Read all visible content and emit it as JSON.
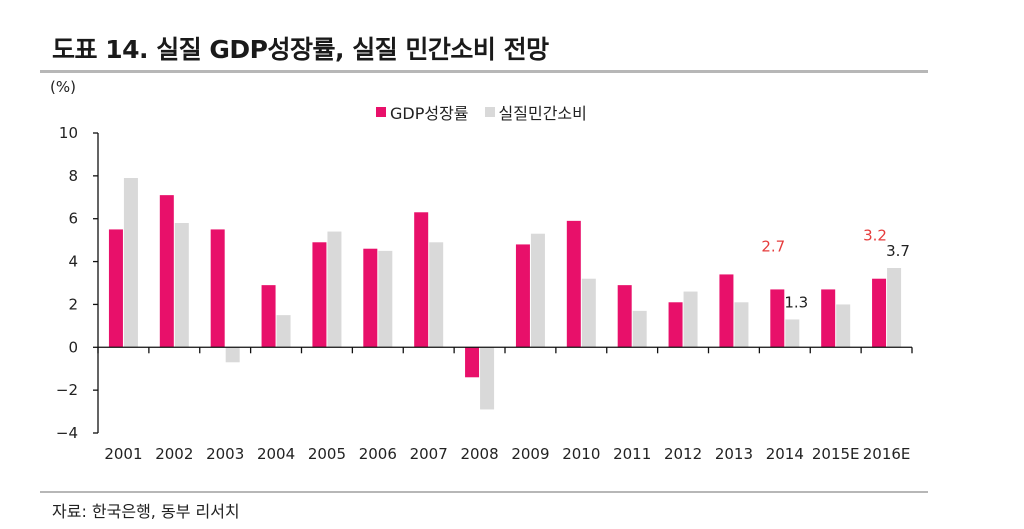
{
  "header": {
    "title": "도표 14. 실질 GDP성장률, 실질 민간소비 전망",
    "source": "자료: 한국은행, 동부 리서치",
    "unit": "(%)"
  },
  "colors": {
    "gdp": "#e8106a",
    "consumption": "#d9d9d9",
    "axis": "#111111",
    "annotation_red": "#e63c3c"
  },
  "chart_data": {
    "type": "bar",
    "categories": [
      "2001",
      "2002",
      "2003",
      "2004",
      "2005",
      "2006",
      "2007",
      "2008",
      "2009",
      "2010",
      "2011",
      "2012",
      "2013",
      "2014",
      "2015E",
      "2016E"
    ],
    "series": [
      {
        "name": "GDP성장률",
        "values": [
          5.5,
          7.1,
          5.5,
          2.9,
          4.9,
          4.6,
          6.3,
          -1.4,
          4.8,
          5.9,
          2.9,
          2.1,
          3.4,
          2.7,
          2.7,
          3.2
        ]
      },
      {
        "name": "실질민간소비",
        "values": [
          7.9,
          5.8,
          -0.7,
          1.5,
          5.4,
          4.5,
          4.9,
          -2.9,
          5.3,
          3.2,
          1.7,
          2.6,
          2.1,
          1.3,
          2.0,
          3.7
        ]
      }
    ],
    "ylim": [
      -4,
      10
    ],
    "yticks": [
      "−4",
      "−2",
      "0",
      "2",
      "4",
      "6",
      "8",
      "10"
    ],
    "ytick_values": [
      -4,
      -2,
      0,
      2,
      4,
      6,
      8,
      10
    ],
    "legend_position": "top-center",
    "grid": false,
    "annotations": [
      {
        "text": "2.7",
        "category": "2014",
        "series": 0,
        "value": 2.7,
        "color": "red"
      },
      {
        "text": "1.3",
        "category": "2014",
        "series": 1,
        "value": 1.3,
        "color": "black"
      },
      {
        "text": "3.2",
        "category": "2016E",
        "series": 0,
        "value": 3.2,
        "color": "red"
      },
      {
        "text": "3.7",
        "category": "2016E",
        "series": 1,
        "value": 3.7,
        "color": "black"
      }
    ]
  }
}
